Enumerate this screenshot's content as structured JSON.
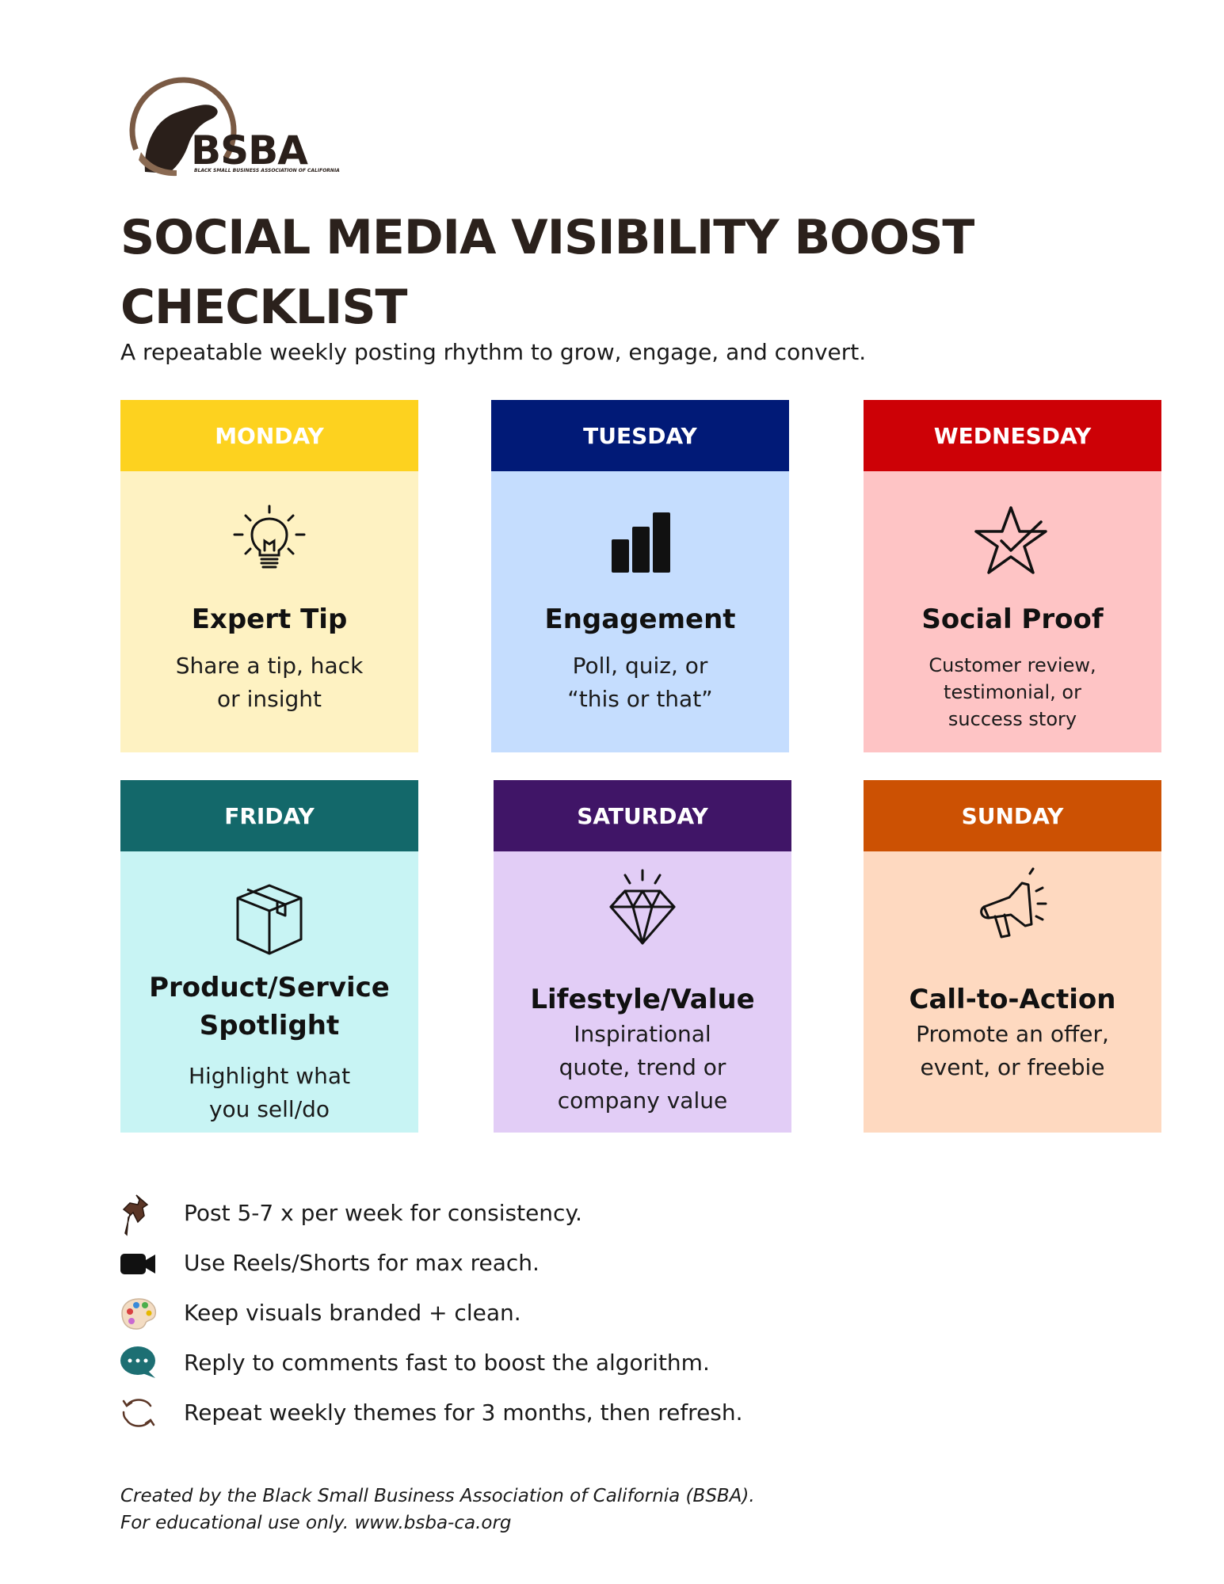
{
  "logo": {
    "text": "BSBA",
    "subtext": "BLACK SMALL BUSINESS ASSOCIATION OF CALIFORNIA"
  },
  "header": {
    "title_line1": "SOCIAL MEDIA VISIBILITY BOOST",
    "title_line2": "CHECKLIST",
    "subtitle": "A repeatable weekly posting rhythm to grow, engage, and convert."
  },
  "cards": [
    {
      "day": "MONDAY",
      "title": "Expert Tip",
      "text": "Share a tip, hack\nor insight",
      "icon": "lightbulb-icon",
      "head_color": "#fdd21f",
      "body_color": "#fef2c2"
    },
    {
      "day": "TUESDAY",
      "title": "Engagement",
      "text": "Poll, quiz, or\n“this or that”",
      "icon": "bar-chart-icon",
      "head_color": "#011a77",
      "body_color": "#c5ddfe"
    },
    {
      "day": "WEDNESDAY",
      "title": "Social Proof",
      "text": "Customer review,\ntestimonial, or\nsuccess story",
      "icon": "star-check-icon",
      "head_color": "#cd0106",
      "body_color": "#fec4c5"
    },
    {
      "day": "FRIDAY",
      "title_line1": "Product/Service",
      "title_line2": "Spotlight",
      "text": "Highlight what\nyou sell/do",
      "icon": "box-icon",
      "head_color": "#13686a",
      "body_color": "#c8f4f4"
    },
    {
      "day": "SATURDAY",
      "title": "Lifestyle/Value",
      "text": "Inspirational\nquote, trend or\ncompany value",
      "icon": "diamond-icon",
      "head_color": "#401567",
      "body_color": "#e2cdf6"
    },
    {
      "day": "SUNDAY",
      "title": "Call-to-Action",
      "text": "Promote an offer,\nevent, or freebie",
      "icon": "megaphone-icon",
      "head_color": "#cc5103",
      "body_color": "#fed9c0"
    }
  ],
  "tips": [
    {
      "icon": "pushpin-icon",
      "text": "Post 5-7 x per week for consistency."
    },
    {
      "icon": "video-camera-icon",
      "text": "Use Reels/Shorts for max reach."
    },
    {
      "icon": "palette-icon",
      "text": "Keep visuals branded + clean."
    },
    {
      "icon": "speech-bubble-icon",
      "text": "Reply to comments fast to boost the algorithm."
    },
    {
      "icon": "refresh-icon",
      "text": "Repeat weekly themes for 3 months, then refresh."
    }
  ],
  "footer": {
    "line1": "Created by the Black Small Business Association of California (BSBA).",
    "line2": "For educational use only. www.bsba-ca.org"
  }
}
